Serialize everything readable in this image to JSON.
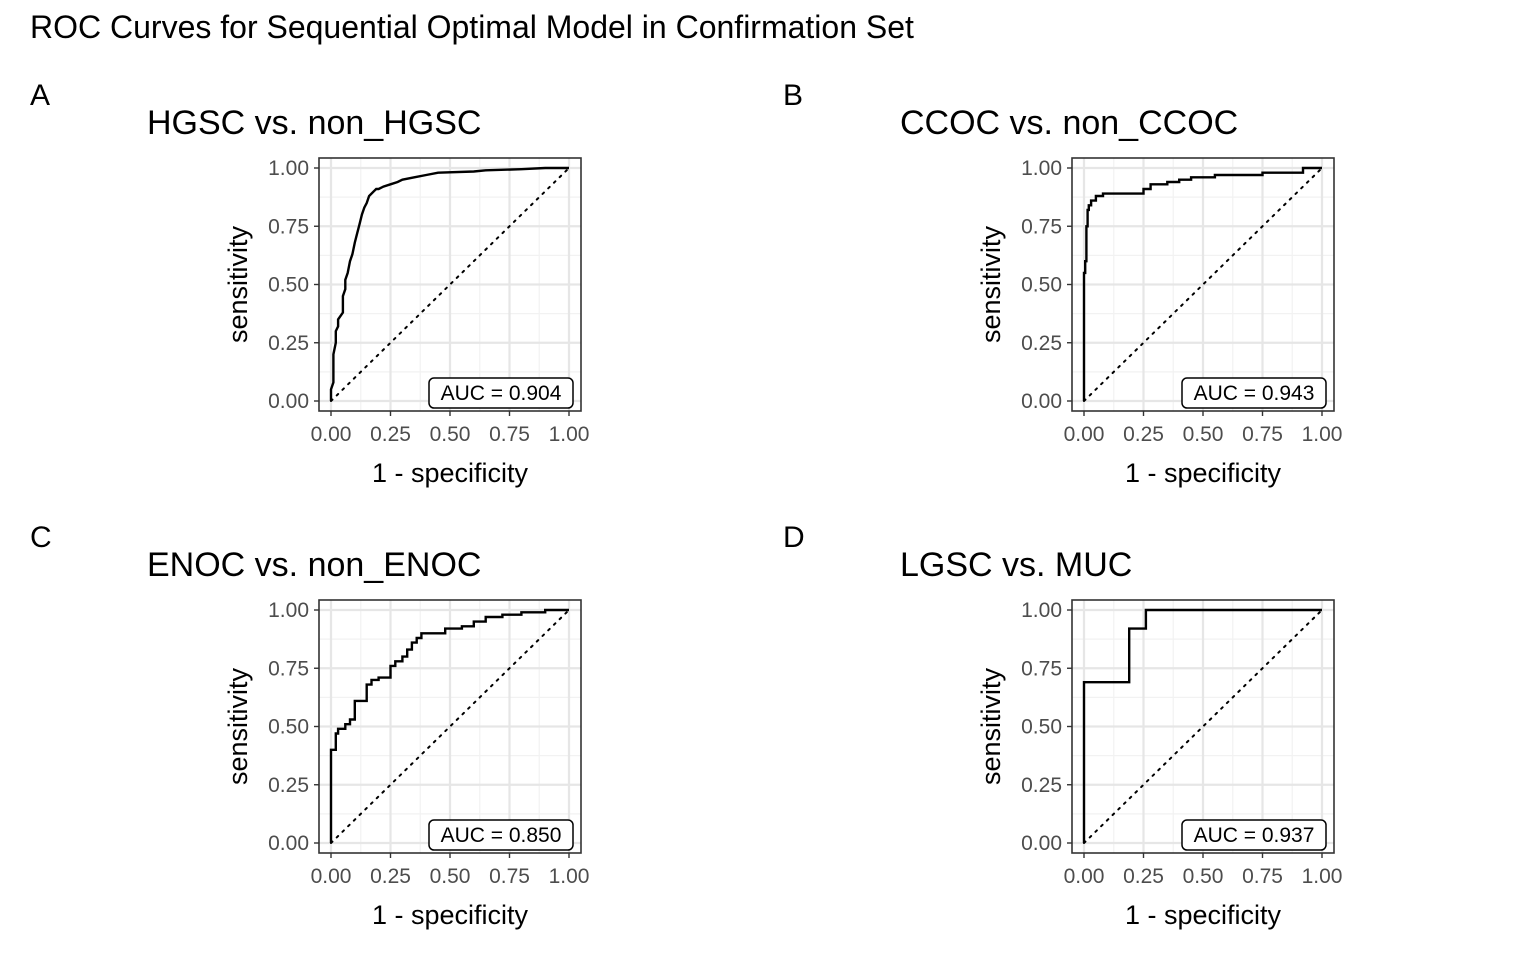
{
  "title": "ROC Curves for Sequential Optimal Model in Confirmation Set",
  "colors": {
    "curve": "#000000",
    "grid_major": "#e6e6e6",
    "grid_minor": "#f2f2f2",
    "axis_text": "#4d4d4d",
    "text": "#000000"
  },
  "chart_data": [
    {
      "type": "line",
      "panel_tag": "A",
      "title": "HGSC vs. non_HGSC",
      "xlabel": "1 - specificity",
      "ylabel": "sensitivity",
      "xlim": [
        0,
        1
      ],
      "ylim": [
        0,
        1
      ],
      "x_ticks": [
        "0.00",
        "0.25",
        "0.50",
        "0.75",
        "1.00"
      ],
      "y_ticks": [
        "0.00",
        "0.25",
        "0.50",
        "0.75",
        "1.00"
      ],
      "grid": true,
      "annotation": "AUC = 0.904",
      "reference_line": "diagonal dotted",
      "series": [
        {
          "x": [
            0,
            0,
            0.01,
            0.01,
            0.02,
            0.02,
            0.03,
            0.03,
            0.05,
            0.05,
            0.06,
            0.06,
            0.07,
            0.08,
            0.09,
            0.1,
            0.11,
            0.12,
            0.13,
            0.14,
            0.15,
            0.16,
            0.18,
            0.19,
            0.2,
            0.22,
            0.25,
            0.28,
            0.3,
            0.35,
            0.4,
            0.45,
            0.6,
            0.65,
            0.8,
            0.9,
            1.0
          ],
          "y": [
            0,
            0.05,
            0.08,
            0.2,
            0.25,
            0.3,
            0.32,
            0.35,
            0.38,
            0.45,
            0.48,
            0.52,
            0.55,
            0.6,
            0.63,
            0.68,
            0.72,
            0.76,
            0.8,
            0.83,
            0.85,
            0.88,
            0.9,
            0.91,
            0.91,
            0.92,
            0.93,
            0.94,
            0.95,
            0.96,
            0.97,
            0.98,
            0.985,
            0.99,
            0.995,
            1.0,
            1.0
          ]
        }
      ]
    },
    {
      "type": "line",
      "panel_tag": "B",
      "title": "CCOC vs. non_CCOC",
      "xlabel": "1 - specificity",
      "ylabel": "sensitivity",
      "xlim": [
        0,
        1
      ],
      "ylim": [
        0,
        1
      ],
      "x_ticks": [
        "0.00",
        "0.25",
        "0.50",
        "0.75",
        "1.00"
      ],
      "y_ticks": [
        "0.00",
        "0.25",
        "0.50",
        "0.75",
        "1.00"
      ],
      "grid": true,
      "annotation": "AUC = 0.943",
      "reference_line": "diagonal dotted",
      "series": [
        {
          "x": [
            0,
            0,
            0.005,
            0.005,
            0.01,
            0.01,
            0.015,
            0.015,
            0.02,
            0.02,
            0.03,
            0.03,
            0.05,
            0.05,
            0.08,
            0.08,
            0.25,
            0.25,
            0.28,
            0.28,
            0.35,
            0.35,
            0.4,
            0.4,
            0.45,
            0.45,
            0.55,
            0.55,
            0.75,
            0.75,
            0.92,
            0.92,
            1.0
          ],
          "y": [
            0,
            0.55,
            0.55,
            0.6,
            0.6,
            0.75,
            0.75,
            0.82,
            0.82,
            0.84,
            0.84,
            0.86,
            0.86,
            0.88,
            0.88,
            0.89,
            0.89,
            0.91,
            0.91,
            0.93,
            0.93,
            0.94,
            0.94,
            0.95,
            0.95,
            0.96,
            0.96,
            0.97,
            0.97,
            0.98,
            0.98,
            1.0,
            1.0
          ]
        }
      ]
    },
    {
      "type": "line",
      "panel_tag": "C",
      "title": "ENOC vs. non_ENOC",
      "xlabel": "1 - specificity",
      "ylabel": "sensitivity",
      "xlim": [
        0,
        1
      ],
      "ylim": [
        0,
        1
      ],
      "x_ticks": [
        "0.00",
        "0.25",
        "0.50",
        "0.75",
        "1.00"
      ],
      "y_ticks": [
        "0.00",
        "0.25",
        "0.50",
        "0.75",
        "1.00"
      ],
      "grid": true,
      "annotation": "AUC = 0.850",
      "reference_line": "diagonal dotted",
      "series": [
        {
          "x": [
            0,
            0,
            0.02,
            0.02,
            0.03,
            0.03,
            0.06,
            0.06,
            0.08,
            0.08,
            0.1,
            0.1,
            0.15,
            0.15,
            0.17,
            0.17,
            0.2,
            0.2,
            0.25,
            0.25,
            0.27,
            0.27,
            0.3,
            0.3,
            0.32,
            0.32,
            0.34,
            0.34,
            0.36,
            0.36,
            0.38,
            0.38,
            0.48,
            0.48,
            0.55,
            0.55,
            0.6,
            0.6,
            0.65,
            0.65,
            0.72,
            0.72,
            0.8,
            0.8,
            0.9,
            0.9,
            1.0
          ],
          "y": [
            0,
            0.4,
            0.4,
            0.47,
            0.47,
            0.49,
            0.49,
            0.51,
            0.51,
            0.53,
            0.53,
            0.61,
            0.61,
            0.68,
            0.68,
            0.7,
            0.7,
            0.71,
            0.71,
            0.76,
            0.76,
            0.78,
            0.78,
            0.8,
            0.8,
            0.83,
            0.83,
            0.86,
            0.86,
            0.88,
            0.88,
            0.9,
            0.9,
            0.92,
            0.92,
            0.93,
            0.93,
            0.95,
            0.95,
            0.97,
            0.97,
            0.98,
            0.98,
            0.99,
            0.99,
            1.0,
            1.0
          ]
        }
      ]
    },
    {
      "type": "line",
      "panel_tag": "D",
      "title": "LGSC vs. MUC",
      "xlabel": "1 - specificity",
      "ylabel": "sensitivity",
      "xlim": [
        0,
        1
      ],
      "ylim": [
        0,
        1
      ],
      "x_ticks": [
        "0.00",
        "0.25",
        "0.50",
        "0.75",
        "1.00"
      ],
      "y_ticks": [
        "0.00",
        "0.25",
        "0.50",
        "0.75",
        "1.00"
      ],
      "grid": true,
      "annotation": "AUC = 0.937",
      "reference_line": "diagonal dotted",
      "series": [
        {
          "x": [
            0,
            0,
            0.19,
            0.19,
            0.26,
            0.26,
            1.0
          ],
          "y": [
            0,
            0.69,
            0.69,
            0.92,
            0.92,
            1.0,
            1.0
          ]
        }
      ]
    }
  ]
}
